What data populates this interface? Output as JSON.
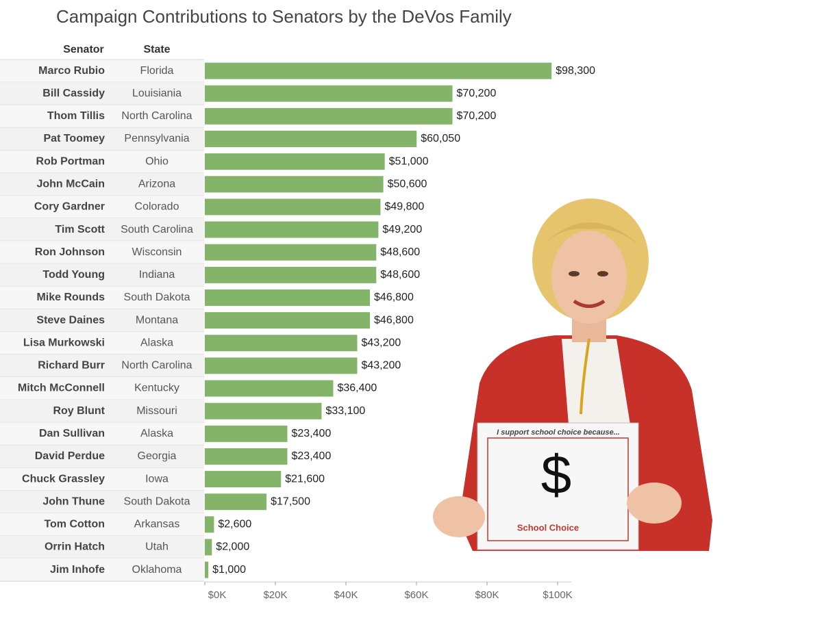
{
  "chart_data": {
    "type": "bar",
    "title": "Campaign Contributions to Senators by the DeVos Family",
    "column_headers": [
      "Senator",
      "State"
    ],
    "categories": [
      "Marco Rubio",
      "Bill Cassidy",
      "Thom Tillis",
      "Pat Toomey",
      "Rob Portman",
      "John McCain",
      "Cory Gardner",
      "Tim Scott",
      "Ron Johnson",
      "Todd Young",
      "Mike Rounds",
      "Steve Daines",
      "Lisa Murkowski",
      "Richard Burr",
      "Mitch McConnell",
      "Roy Blunt",
      "Dan Sullivan",
      "David Perdue",
      "Chuck Grassley",
      "John Thune",
      "Tom Cotton",
      "Orrin Hatch",
      "Jim Inhofe"
    ],
    "states": [
      "Florida",
      "Louisiania",
      "North Carolina",
      "Pennsylvania",
      "Ohio",
      "Arizona",
      "Colorado",
      "South Carolina",
      "Wisconsin",
      "Indiana",
      "South Dakota",
      "Montana",
      "Alaska",
      "North Carolina",
      "Kentucky",
      "Missouri",
      "Alaska",
      "Georgia",
      "Iowa",
      "South Dakota",
      "Arkansas",
      "Utah",
      "Oklahoma"
    ],
    "values": [
      98300,
      70200,
      70200,
      60050,
      51000,
      50600,
      49800,
      49200,
      48600,
      48600,
      46800,
      46800,
      43200,
      43200,
      36400,
      33100,
      23400,
      23400,
      21600,
      17500,
      2600,
      2000,
      1000
    ],
    "value_labels": [
      "$98,300",
      "$70,200",
      "$70,200",
      "$60,050",
      "$51,000",
      "$50,600",
      "$49,800",
      "$49,200",
      "$48,600",
      "$48,600",
      "$46,800",
      "$46,800",
      "$43,200",
      "$43,200",
      "$36,400",
      "$33,100",
      "$23,400",
      "$23,400",
      "$21,600",
      "$17,500",
      "$2,600",
      "$2,000",
      "$1,000"
    ],
    "color": "#84b46a",
    "xlim": [
      0,
      100000
    ],
    "xticks": [
      {
        "value": 0,
        "label": "$0K"
      },
      {
        "value": 20000,
        "label": "$20K"
      },
      {
        "value": 40000,
        "label": "$40K"
      },
      {
        "value": 60000,
        "label": "$60K"
      },
      {
        "value": 80000,
        "label": "$80K"
      },
      {
        "value": 100000,
        "label": "$100K"
      }
    ],
    "annotations": [
      "I support school choice because...",
      "$",
      "School Choice"
    ]
  }
}
